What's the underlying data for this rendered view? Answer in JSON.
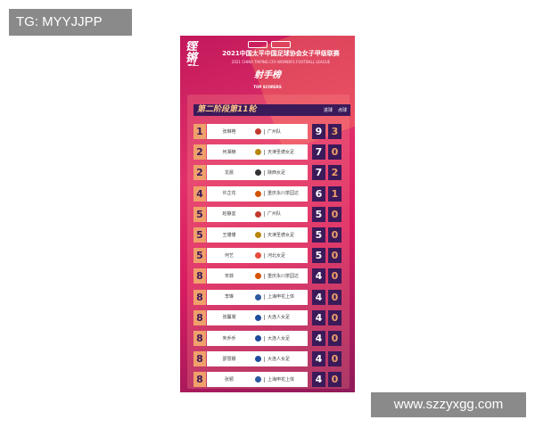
{
  "overlay": {
    "tag": "TG: MYYJJPP",
    "url": "www.szzyxgg.com"
  },
  "poster": {
    "logo": "铿锵玫瑰",
    "title_cn": "2021中国太平中国足球协会女子甲级联赛",
    "title_en": "2021 CHINA TAIPING CFA WOMEN'S FOOTBALL LEAGUE",
    "section_cn": "射手榜",
    "section_en": "TOP SCORERS",
    "round": "第二阶段第11轮",
    "col_goals": "进球",
    "col_pens": "点球"
  },
  "rows": [
    {
      "rank": "1",
      "name": "张琳艳",
      "team": "广州队",
      "goals": "9",
      "pens": "3",
      "badge": "#c0392b"
    },
    {
      "rank": "2",
      "name": "何湘楠",
      "team": "天津圣德女足",
      "goals": "7",
      "pens": "0",
      "badge": "#b8860b"
    },
    {
      "rank": "2",
      "name": "龙晨",
      "team": "陕西女足",
      "goals": "7",
      "pens": "2",
      "badge": "#333333"
    },
    {
      "rank": "4",
      "name": "许芷花",
      "team": "重庆永川茶园达",
      "goals": "6",
      "pens": "1",
      "badge": "#d35400"
    },
    {
      "rank": "5",
      "name": "赵静宜",
      "team": "广州队",
      "goals": "5",
      "pens": "0",
      "badge": "#c0392b"
    },
    {
      "rank": "5",
      "name": "王珊珊",
      "team": "天津圣德女足",
      "goals": "5",
      "pens": "0",
      "badge": "#b8860b"
    },
    {
      "rank": "5",
      "name": "何艺",
      "team": "河北女足",
      "goals": "5",
      "pens": "0",
      "badge": "#e74c3c"
    },
    {
      "rank": "8",
      "name": "宋菲",
      "team": "重庆永川茶园达",
      "goals": "4",
      "pens": "0",
      "badge": "#d35400"
    },
    {
      "rank": "8",
      "name": "李琳",
      "team": "上海申花上体",
      "goals": "4",
      "pens": "0",
      "badge": "#2c5aa0"
    },
    {
      "rank": "8",
      "name": "张馨凝",
      "team": "大连人女足",
      "goals": "4",
      "pens": "0",
      "badge": "#1f4e9c"
    },
    {
      "rank": "8",
      "name": "朱乔乔",
      "team": "大连人女足",
      "goals": "4",
      "pens": "0",
      "badge": "#1f4e9c"
    },
    {
      "rank": "8",
      "name": "邵慧娜",
      "team": "大连人女足",
      "goals": "4",
      "pens": "0",
      "badge": "#1f4e9c"
    },
    {
      "rank": "8",
      "name": "张颖",
      "team": "上海申花上体",
      "goals": "4",
      "pens": "0",
      "badge": "#2c5aa0"
    }
  ]
}
